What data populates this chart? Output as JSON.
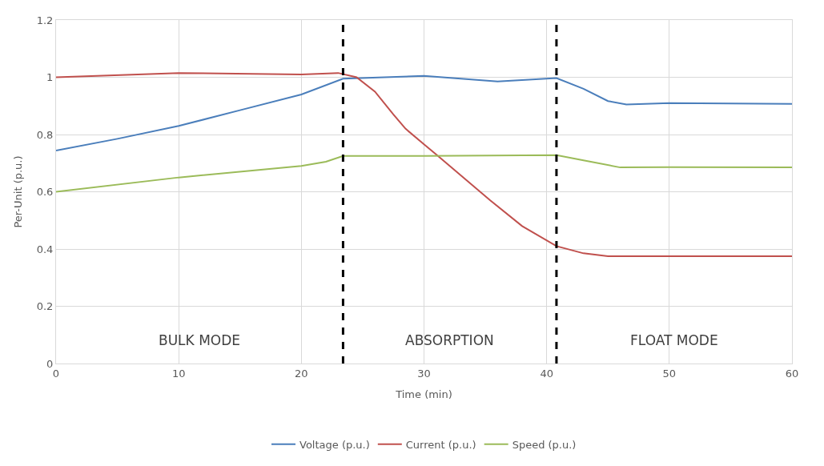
{
  "chart_data": {
    "type": "line",
    "xlabel": "Time (min)",
    "ylabel": "Per-Unit (p.u.)",
    "xlim": [
      0,
      60
    ],
    "xticks": [
      0,
      10,
      20,
      30,
      40,
      50,
      60
    ],
    "ylim": [
      0,
      1.2
    ],
    "yticks": [
      0,
      0.2,
      0.4,
      0.6,
      0.8,
      1,
      1.2
    ],
    "grid": true,
    "legend": "bottom",
    "line_style": "solid",
    "marker": "none",
    "series": [
      {
        "name": "Voltage (p.u.)",
        "color": "#4a7ebb",
        "x": [
          0,
          5,
          10,
          15,
          20,
          23.4,
          30,
          36,
          40.8,
          43,
          45,
          46.5,
          50,
          60
        ],
        "values": [
          0.744,
          0.785,
          0.83,
          0.885,
          0.94,
          0.995,
          1.005,
          0.985,
          0.997,
          0.96,
          0.917,
          0.905,
          0.91,
          0.907
        ]
      },
      {
        "name": "Current (p.u.)",
        "color": "#c0504d",
        "x": [
          0,
          10,
          20,
          23,
          24.5,
          26,
          27.5,
          28.5,
          30,
          31,
          35.4,
          38,
          40.8,
          43,
          45,
          60
        ],
        "values": [
          1.0,
          1.015,
          1.01,
          1.015,
          1.0,
          0.95,
          0.87,
          0.82,
          0.766,
          0.73,
          0.57,
          0.48,
          0.41,
          0.385,
          0.375,
          0.375
        ]
      },
      {
        "name": "Speed (p.u.)",
        "color": "#9bbb59",
        "x": [
          0,
          10,
          20,
          22,
          23.4,
          30,
          40.8,
          43,
          46,
          50,
          60
        ],
        "values": [
          0.6,
          0.65,
          0.69,
          0.705,
          0.725,
          0.725,
          0.728,
          0.71,
          0.685,
          0.686,
          0.685
        ]
      }
    ],
    "ref_lines": [
      {
        "axis": "x",
        "value": 23.4,
        "color": "#000000",
        "line_style": "dashed"
      },
      {
        "axis": "x",
        "value": 40.8,
        "color": "#000000",
        "line_style": "dashed"
      }
    ],
    "annotations": [
      "BULK MODE",
      "ABSORPTION",
      "FLOAT MODE"
    ]
  }
}
